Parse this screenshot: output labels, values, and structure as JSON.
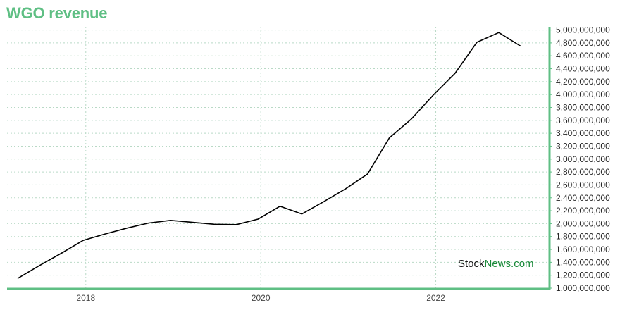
{
  "title": "WGO revenue",
  "watermark": {
    "part1": "Stock",
    "part2": "News",
    "part3": ".com"
  },
  "colors": {
    "title": "#5fbf84",
    "axis": "#5fbf84",
    "line": "#000000",
    "grid": "#b9d9c6",
    "watermark_dark": "#111111",
    "watermark_green": "#1a8a3a"
  },
  "chart_data": {
    "type": "line",
    "title": "WGO revenue",
    "xlabel": "",
    "ylabel": "",
    "ylim": [
      1000000000,
      5050000000
    ],
    "xlim": [
      2017.1,
      2023.3
    ],
    "x_ticks": [
      {
        "value": 2018,
        "label": "2018"
      },
      {
        "value": 2020,
        "label": "2020"
      },
      {
        "value": 2022,
        "label": "2022"
      }
    ],
    "y_ticks": [
      {
        "value": 1000000000,
        "label": "1,000,000,000"
      },
      {
        "value": 1200000000,
        "label": "1,200,000,000"
      },
      {
        "value": 1400000000,
        "label": "1,400,000,000"
      },
      {
        "value": 1600000000,
        "label": "1,600,000,000"
      },
      {
        "value": 1800000000,
        "label": "1,800,000,000"
      },
      {
        "value": 2000000000,
        "label": "2,000,000,000"
      },
      {
        "value": 2200000000,
        "label": "2,200,000,000"
      },
      {
        "value": 2400000000,
        "label": "2,400,000,000"
      },
      {
        "value": 2600000000,
        "label": "2,600,000,000"
      },
      {
        "value": 2800000000,
        "label": "2,800,000,000"
      },
      {
        "value": 3000000000,
        "label": "3,000,000,000"
      },
      {
        "value": 3200000000,
        "label": "3,200,000,000"
      },
      {
        "value": 3400000000,
        "label": "3,400,000,000"
      },
      {
        "value": 3600000000,
        "label": "3,600,000,000"
      },
      {
        "value": 3800000000,
        "label": "3,800,000,000"
      },
      {
        "value": 4000000000,
        "label": "4,000,000,000"
      },
      {
        "value": 4200000000,
        "label": "4,200,000,000"
      },
      {
        "value": 4400000000,
        "label": "4,400,000,000"
      },
      {
        "value": 4600000000,
        "label": "4,600,000,000"
      },
      {
        "value": 4800000000,
        "label": "4,800,000,000"
      },
      {
        "value": 5000000000,
        "label": "5,000,000,000"
      }
    ],
    "grid": true,
    "series": [
      {
        "x": [
          2017.22,
          2017.47,
          2017.72,
          2017.97,
          2018.22,
          2018.47,
          2018.72,
          2018.97,
          2019.22,
          2019.47,
          2019.72,
          2019.97,
          2020.22,
          2020.47,
          2020.72,
          2020.97,
          2021.22,
          2021.47,
          2021.72,
          2021.97,
          2022.22,
          2022.47,
          2022.72,
          2022.97
        ],
        "values": [
          1150000000,
          1350000000,
          1540000000,
          1740000000,
          1840000000,
          1930000000,
          2010000000,
          2050000000,
          2020000000,
          1990000000,
          1985000000,
          2070000000,
          2270000000,
          2150000000,
          2340000000,
          2540000000,
          2770000000,
          3330000000,
          3620000000,
          3990000000,
          4330000000,
          4810000000,
          4960000000,
          4750000000
        ]
      }
    ]
  }
}
